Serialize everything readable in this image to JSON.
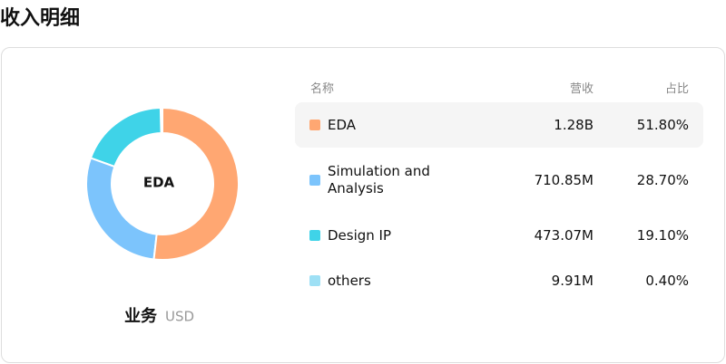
{
  "title": "收入明细",
  "chart_data": {
    "type": "pie",
    "categories": [
      "EDA",
      "Simulation and Analysis",
      "Design IP",
      "others"
    ],
    "values": [
      51.8,
      28.7,
      19.1,
      0.4
    ],
    "value_labels": [
      "51.80%",
      "28.70%",
      "19.10%",
      "0.40%"
    ],
    "colors": [
      "#ffa772",
      "#7cc4fc",
      "#3fd3e8",
      "#9ee0f5"
    ]
  },
  "caption": {
    "label": "业务",
    "unit": "USD"
  },
  "table": {
    "headers": [
      "名称",
      "营收",
      "占比"
    ],
    "revenue": [
      "1.28B",
      "710.85M",
      "473.07M",
      "9.91M"
    ]
  }
}
